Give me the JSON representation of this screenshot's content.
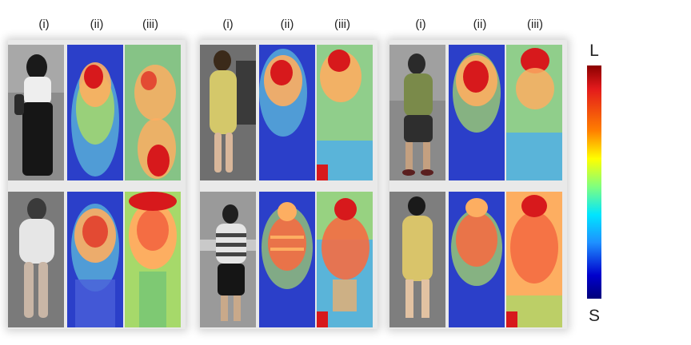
{
  "figure": {
    "column_labels": [
      "(i)",
      "(ii)",
      "(iii)"
    ],
    "colorbar": {
      "top_label": "L",
      "bottom_label": "S"
    }
  },
  "colors": {
    "heat_background": "#2b3fc9",
    "heat_hot": "#d7191c",
    "heat_warm": "#fdae61",
    "heat_mid": "#a6d96a",
    "photo_background": "#8c8c8c"
  }
}
